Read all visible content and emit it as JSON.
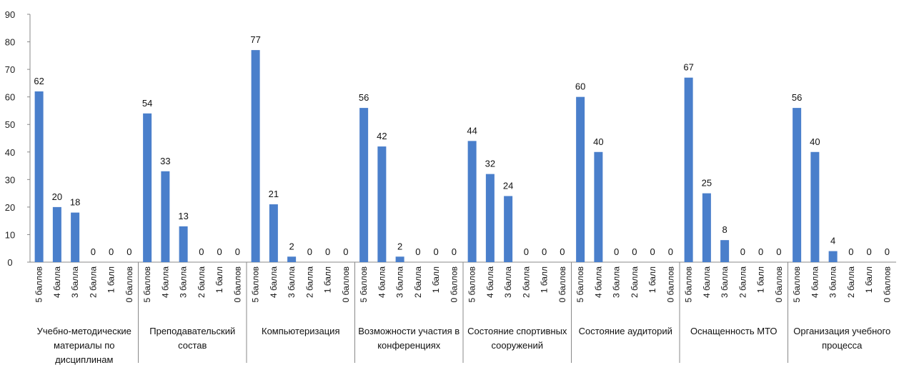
{
  "chart_data": {
    "type": "bar",
    "title": "",
    "xlabel": "",
    "ylabel": "",
    "ylim": [
      0,
      90
    ],
    "yticks": [
      0,
      10,
      20,
      30,
      40,
      50,
      60,
      70,
      80,
      90
    ],
    "grid": false,
    "bar_color": "#4a7fcb",
    "subcategories": [
      "5 баллов",
      "4 балла",
      "3 балла",
      "2 балла",
      "1 балл",
      "0 баллов"
    ],
    "groups": [
      {
        "name": [
          "Учебно-методические",
          "материалы по",
          "дисциплинам"
        ],
        "values": [
          62,
          20,
          18,
          0,
          0,
          0
        ]
      },
      {
        "name": [
          "Преподавательский",
          "состав"
        ],
        "values": [
          54,
          33,
          13,
          0,
          0,
          0
        ]
      },
      {
        "name": [
          "Компьютеризация"
        ],
        "values": [
          77,
          21,
          2,
          0,
          0,
          0
        ]
      },
      {
        "name": [
          "Возможности участия в",
          "конференциях"
        ],
        "values": [
          56,
          42,
          2,
          0,
          0,
          0
        ]
      },
      {
        "name": [
          "Состояние спортивных",
          "сооружений"
        ],
        "values": [
          44,
          32,
          24,
          0,
          0,
          0
        ]
      },
      {
        "name": [
          "Состояние аудиторий"
        ],
        "values": [
          60,
          40,
          0,
          0,
          0,
          0
        ]
      },
      {
        "name": [
          "Оснащенность МТО"
        ],
        "values": [
          67,
          25,
          8,
          0,
          0,
          0
        ]
      },
      {
        "name": [
          "Организация учебного",
          "процесса"
        ],
        "values": [
          56,
          40,
          4,
          0,
          0,
          0
        ]
      }
    ]
  }
}
